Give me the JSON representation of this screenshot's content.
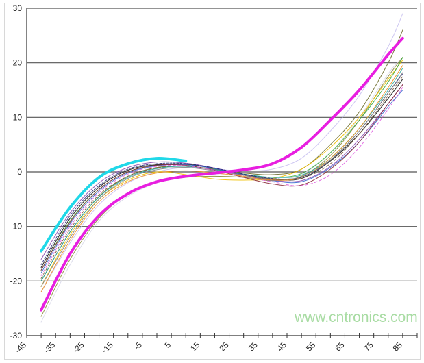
{
  "chart_data": {
    "type": "line",
    "title": "",
    "xlabel": "",
    "ylabel": "",
    "xlim": [
      -45,
      90
    ],
    "ylim": [
      -30,
      30
    ],
    "x_tick_labels": [
      "-45",
      "-35",
      "-25",
      "-15",
      "-5",
      "5",
      "15",
      "25",
      "35",
      "45",
      "55",
      "65",
      "75",
      "85"
    ],
    "y_tick_labels": [
      "30",
      "20",
      "10",
      "0",
      "-10",
      "-20",
      "-30"
    ],
    "grid": "horizontal",
    "x": [
      -40,
      -30,
      -20,
      -10,
      0,
      10,
      20,
      30,
      40,
      50,
      60,
      70,
      80,
      85
    ],
    "series": [
      {
        "color": "#d8d8e8",
        "width": 1,
        "values": [
          -27.5,
          -17,
          -9,
          -4.5,
          -2,
          -0.8,
          -0.5,
          -0.8,
          -1.5,
          -0.5,
          3.5,
          10,
          18,
          21
        ]
      },
      {
        "color": "#8a8a3a",
        "width": 1,
        "values": [
          -26.5,
          -16,
          -8.5,
          -4,
          -1.8,
          -1,
          -0.8,
          -1,
          -1.6,
          -0.8,
          3,
          9.5,
          17.5,
          21
        ]
      },
      {
        "color": "#c8c0f0",
        "width": 1,
        "values": [
          -22,
          -13,
          -6,
          -2,
          0,
          0.8,
          0.5,
          0.2,
          0.5,
          2.5,
          7.5,
          14,
          23,
          29
        ]
      },
      {
        "color": "#6b6b2a",
        "width": 1,
        "values": [
          -20,
          -11,
          -4.5,
          -0.8,
          0.8,
          1,
          0.5,
          -0.2,
          -0.5,
          0.5,
          5,
          11,
          20,
          26
        ]
      },
      {
        "color": "#f0c000",
        "width": 1,
        "values": [
          -21,
          -11.5,
          -5,
          -1.5,
          0,
          -0.5,
          -1.3,
          -1.5,
          -1.2,
          0.5,
          4.5,
          10,
          17,
          20.5
        ]
      },
      {
        "color": "#3aa83a",
        "width": 1,
        "values": [
          -18,
          -9,
          -3.2,
          0,
          1.2,
          1.4,
          0.6,
          -0.4,
          -1,
          -0.3,
          3.5,
          9.5,
          16.5,
          21
        ]
      },
      {
        "color": "#222222",
        "width": 1.2,
        "values": [
          -17.5,
          -8.5,
          -2.8,
          0.3,
          1.3,
          1.4,
          0.6,
          -0.5,
          -1.3,
          -1.2,
          2,
          7,
          13.5,
          17
        ]
      },
      {
        "color": "#8a4ab0",
        "width": 1,
        "values": [
          -16,
          -7.5,
          -2,
          0.8,
          1.8,
          1.6,
          0.7,
          -0.5,
          -1.5,
          -1.6,
          1,
          6,
          12.5,
          16
        ]
      },
      {
        "color": "#3a6ad0",
        "width": 1,
        "values": [
          -18.5,
          -9.5,
          -3.5,
          -0.2,
          1.1,
          1.3,
          0.6,
          -0.6,
          -1.6,
          -1.8,
          0.8,
          5.5,
          12,
          15
        ]
      },
      {
        "color": "#7a5a3a",
        "width": 1,
        "dash": "4,3",
        "values": [
          -19.5,
          -10.5,
          -4.2,
          -0.8,
          0.7,
          1,
          0.4,
          -0.6,
          -1.4,
          -1.2,
          1.5,
          7,
          14,
          17.5
        ]
      },
      {
        "color": "#2aa8a0",
        "width": 1,
        "values": [
          -20,
          -11,
          -4.6,
          -1,
          0.6,
          1,
          0.4,
          -0.4,
          -1,
          -0.6,
          2.5,
          8,
          15,
          19
        ]
      },
      {
        "color": "#8a2a3a",
        "width": 1,
        "values": [
          -18,
          -9.2,
          -3.2,
          0,
          1.2,
          1.2,
          0.3,
          -1,
          -2.2,
          -2.4,
          0.5,
          5.5,
          12.5,
          16
        ]
      },
      {
        "color": "#e060e0",
        "width": 1,
        "dash": "4,3",
        "values": [
          -19,
          -10,
          -3.8,
          -0.4,
          1,
          1.1,
          0.3,
          -0.8,
          -1.8,
          -2.5,
          -0.5,
          4.5,
          11.5,
          15.5
        ]
      },
      {
        "color": "#f09020",
        "width": 1,
        "values": [
          -22,
          -12.5,
          -5.5,
          -1.8,
          -0.2,
          0.2,
          -0.2,
          -0.8,
          -1.5,
          -1,
          2.5,
          8,
          15.5,
          19.5
        ]
      },
      {
        "color": "#2a2a7a",
        "width": 1,
        "dash": "3,2",
        "values": [
          -17,
          -8,
          -2.5,
          0.5,
          1.5,
          1.5,
          0.7,
          -0.4,
          -1.2,
          -1,
          2.2,
          7.5,
          14.5,
          18
        ]
      },
      {
        "color": "#808080",
        "width": 1,
        "values": [
          -21,
          -12,
          -5,
          -1.2,
          0.4,
          0.8,
          0.2,
          -0.6,
          -1.3,
          -0.9,
          2.2,
          7.5,
          14.5,
          18.2
        ]
      },
      {
        "color": "#20d8e8",
        "width": 4,
        "values": [
          -14.5,
          -6.5,
          -1,
          1.5,
          2.5,
          2.0,
          null,
          null,
          null,
          null,
          null,
          null,
          null,
          null
        ]
      },
      {
        "color": "#e81ee0",
        "width": 4,
        "values": [
          -25.3,
          -15,
          -8,
          -4,
          -1.8,
          -0.8,
          -0.2,
          0.4,
          1.5,
          4.5,
          9.5,
          15,
          21.5,
          24.5
        ]
      }
    ]
  },
  "watermark": "www.cntronics.com"
}
